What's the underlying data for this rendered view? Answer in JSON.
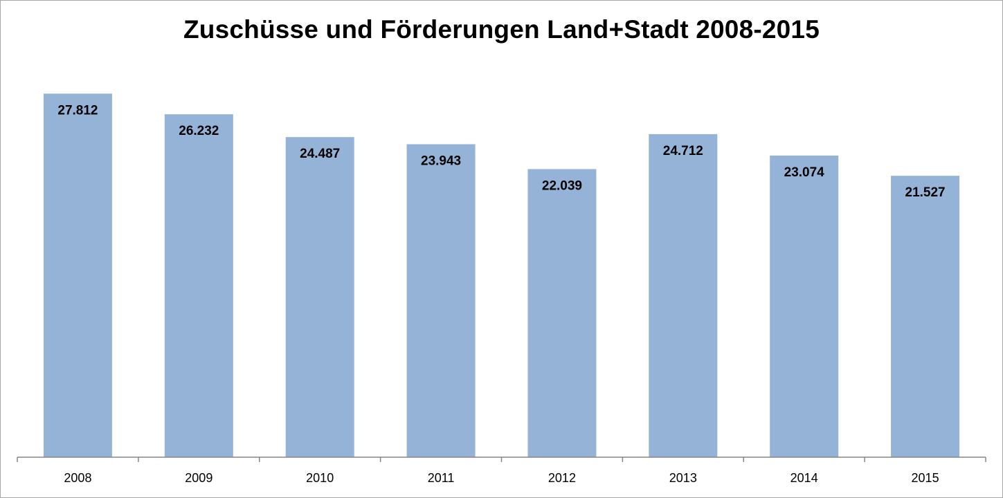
{
  "chart_data": {
    "type": "bar",
    "title": "Zuschüsse und Förderungen Land+Stadt 2008-2015",
    "categories": [
      "2008",
      "2009",
      "2010",
      "2011",
      "2012",
      "2013",
      "2014",
      "2015"
    ],
    "values": [
      27812,
      26232,
      24487,
      23943,
      22039,
      24712,
      23074,
      21527
    ],
    "value_labels": [
      "27.812",
      "26.232",
      "24.487",
      "23.943",
      "22.039",
      "24.712",
      "23.074",
      "21.527"
    ],
    "xlabel": "",
    "ylabel": "",
    "ylim": [
      0,
      30000
    ],
    "grid": false,
    "legend": "none",
    "bar_color": "#95b3d7",
    "axis_color": "#868686"
  }
}
